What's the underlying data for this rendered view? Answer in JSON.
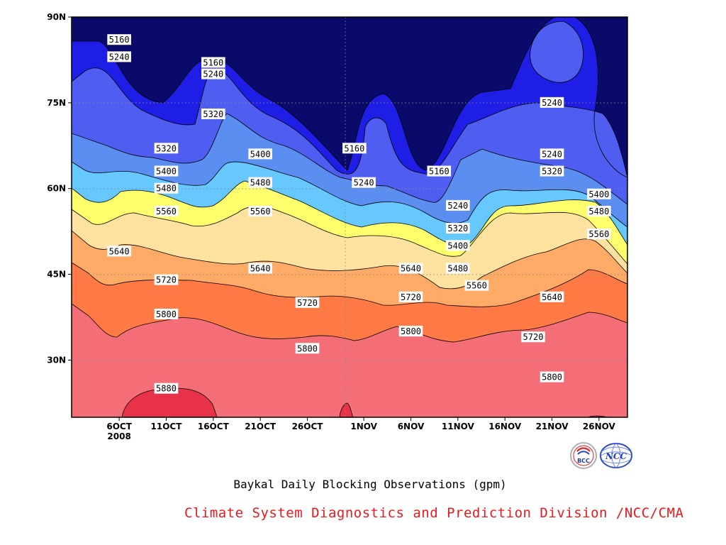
{
  "chart_data": {
    "type": "contour",
    "title": "Baykal Daily Blocking Observations (gpm)",
    "x_tick_labels": [
      "6OCT",
      "11OCT",
      "16OCT",
      "21OCT",
      "26OCT",
      "1NOV",
      "6NOV",
      "11NOV",
      "16NOV",
      "21NOV",
      "26NOV"
    ],
    "x_year_label": "2008",
    "y_tick_labels": [
      "90N",
      "75N",
      "60N",
      "45N",
      "30N"
    ],
    "y_ticks_deg": [
      90,
      75,
      60,
      45,
      30
    ],
    "ylim": [
      20,
      90
    ],
    "contour_levels": [
      5160,
      5240,
      5320,
      5400,
      5480,
      5560,
      5640,
      5720,
      5800,
      5880
    ],
    "fill_colors": [
      "#0a0a6a",
      "#1e1ee6",
      "#4f5ef0",
      "#5a8ef0",
      "#66c8ff",
      "#ffff6e",
      "#ffe1a0",
      "#ffaa66",
      "#ff7a44",
      "#f46e78",
      "#e8324a"
    ],
    "contour_labels": [
      {
        "text": "5160",
        "date": "6OCT",
        "lat": 86
      },
      {
        "text": "5240",
        "date": "6OCT",
        "lat": 83
      },
      {
        "text": "5160",
        "date": "16OCT",
        "lat": 82
      },
      {
        "text": "5240",
        "date": "16OCT",
        "lat": 80
      },
      {
        "text": "5320",
        "date": "16OCT",
        "lat": 73
      },
      {
        "text": "5320",
        "date": "11OCT",
        "lat": 67
      },
      {
        "text": "5400",
        "date": "11OCT",
        "lat": 63
      },
      {
        "text": "5480",
        "date": "11OCT",
        "lat": 60
      },
      {
        "text": "5560",
        "date": "11OCT",
        "lat": 56
      },
      {
        "text": "5640",
        "date": "6OCT",
        "lat": 49
      },
      {
        "text": "5720",
        "date": "11OCT",
        "lat": 44
      },
      {
        "text": "5800",
        "date": "11OCT",
        "lat": 38
      },
      {
        "text": "5880",
        "date": "11OCT",
        "lat": 25
      },
      {
        "text": "5400",
        "date": "21OCT",
        "lat": 66
      },
      {
        "text": "5480",
        "date": "21OCT",
        "lat": 61
      },
      {
        "text": "5560",
        "date": "21OCT",
        "lat": 56
      },
      {
        "text": "5640",
        "date": "21OCT",
        "lat": 46
      },
      {
        "text": "5720",
        "date": "26OCT",
        "lat": 40
      },
      {
        "text": "5800",
        "date": "26OCT",
        "lat": 32
      },
      {
        "text": "5160",
        "date": "31OCT",
        "lat": 67
      },
      {
        "text": "5240",
        "date": "1NOV",
        "lat": 61
      },
      {
        "text": "5640",
        "date": "6NOV",
        "lat": 46
      },
      {
        "text": "5720",
        "date": "6NOV",
        "lat": 41
      },
      {
        "text": "5800",
        "date": "6NOV",
        "lat": 35
      },
      {
        "text": "5160",
        "date": "9NOV",
        "lat": 63
      },
      {
        "text": "5240",
        "date": "11NOV",
        "lat": 57
      },
      {
        "text": "5320",
        "date": "11NOV",
        "lat": 53
      },
      {
        "text": "5400",
        "date": "11NOV",
        "lat": 50
      },
      {
        "text": "5480",
        "date": "11NOV",
        "lat": 46
      },
      {
        "text": "5560",
        "date": "13NOV",
        "lat": 43
      },
      {
        "text": "5240",
        "date": "21NOV",
        "lat": 75
      },
      {
        "text": "5240",
        "date": "21NOV",
        "lat": 66
      },
      {
        "text": "5320",
        "date": "21NOV",
        "lat": 63
      },
      {
        "text": "5400",
        "date": "26NOV",
        "lat": 59
      },
      {
        "text": "5480",
        "date": "26NOV",
        "lat": 56
      },
      {
        "text": "5560",
        "date": "26NOV",
        "lat": 52
      },
      {
        "text": "5640",
        "date": "21NOV",
        "lat": 41
      },
      {
        "text": "5720",
        "date": "19NOV",
        "lat": 34
      },
      {
        "text": "5800",
        "date": "21NOV",
        "lat": 27
      }
    ]
  },
  "caption": "Baykal Daily Blocking Observations (gpm)",
  "credit": "Climate System Diagnostics and Prediction Division /NCC/CMA",
  "logos": {
    "bcc": "BCC",
    "ncc": "NCC"
  }
}
